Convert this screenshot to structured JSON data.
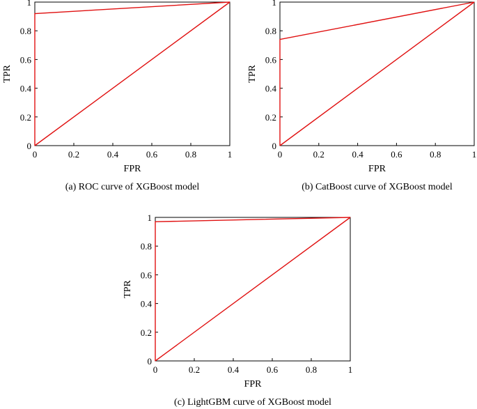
{
  "chart_data": [
    {
      "type": "line",
      "caption": "(a) ROC curve of XGBoost model",
      "xlabel": "FPR",
      "ylabel": "TPR",
      "xlim": [
        0,
        1
      ],
      "ylim": [
        0,
        1
      ],
      "xticks": [
        "0",
        "0.2",
        "0.4",
        "0.6",
        "0.8",
        "1"
      ],
      "yticks": [
        "0",
        "0.2",
        "0.4",
        "0.6",
        "0.8",
        "1"
      ],
      "grid": false,
      "color": "#e01010",
      "series": [
        {
          "x": [
            0,
            0,
            1
          ],
          "y": [
            0,
            0.92,
            1
          ]
        },
        {
          "x": [
            0,
            1
          ],
          "y": [
            0,
            1
          ]
        }
      ]
    },
    {
      "type": "line",
      "caption": "(b) CatBoost curve of XGBoost model",
      "xlabel": "FPR",
      "ylabel": "TPR",
      "xlim": [
        0,
        1
      ],
      "ylim": [
        0,
        1
      ],
      "xticks": [
        "0",
        "0.2",
        "0.4",
        "0.6",
        "0.8",
        "1"
      ],
      "yticks": [
        "0",
        "0.2",
        "0.4",
        "0.6",
        "0.8",
        "1"
      ],
      "grid": false,
      "color": "#e01010",
      "series": [
        {
          "x": [
            0,
            0,
            1
          ],
          "y": [
            0,
            0.74,
            1
          ]
        },
        {
          "x": [
            0,
            1
          ],
          "y": [
            0,
            1
          ]
        }
      ]
    },
    {
      "type": "line",
      "caption": "(c) LightGBM curve of XGBoost model",
      "xlabel": "FPR",
      "ylabel": "TPR",
      "xlim": [
        0,
        1
      ],
      "ylim": [
        0,
        1
      ],
      "xticks": [
        "0",
        "0.2",
        "0.4",
        "0.6",
        "0.8",
        "1"
      ],
      "yticks": [
        "0",
        "0.2",
        "0.4",
        "0.6",
        "0.8",
        "1"
      ],
      "grid": false,
      "color": "#e01010",
      "series": [
        {
          "x": [
            0,
            0,
            1
          ],
          "y": [
            0,
            0.97,
            1
          ]
        },
        {
          "x": [
            0,
            1
          ],
          "y": [
            0,
            1
          ]
        }
      ]
    }
  ]
}
